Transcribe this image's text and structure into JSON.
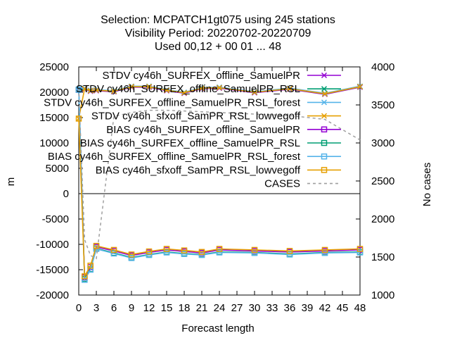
{
  "chart_data": {
    "type": "line",
    "title_lines": [
      "Selection: MCPATCH1gt075 using   245 stations",
      "Visibility   Period: 20220702-20220709",
      "Used  00,12  + 00 01 ... 48"
    ],
    "xlabel": "Forecast length",
    "ylabel": "m",
    "y2label": "No cases",
    "xlim": [
      0,
      48
    ],
    "ylim": [
      -20000,
      25000
    ],
    "y2lim": [
      1000,
      4000
    ],
    "x_ticks": [
      0,
      3,
      6,
      9,
      12,
      15,
      18,
      21,
      24,
      27,
      30,
      33,
      36,
      39,
      42,
      45,
      48
    ],
    "y_ticks": [
      -20000,
      -15000,
      -10000,
      -5000,
      0,
      5000,
      10000,
      15000,
      20000,
      25000
    ],
    "y2_ticks": [
      1000,
      1500,
      2000,
      2500,
      3000,
      3500,
      4000
    ],
    "legend_position": "top-right",
    "grid": false,
    "x": [
      0,
      1,
      2,
      3,
      6,
      9,
      12,
      15,
      18,
      21,
      24,
      30,
      36,
      42,
      48
    ],
    "series": [
      {
        "name": "STDV cy46h_SURFEX_offline_SamuelPR",
        "color": "#9400d3",
        "marker": "x",
        "axis": "y",
        "values": [
          20400,
          20600,
          20200,
          20300,
          20100,
          21000,
          21000,
          20300,
          19800,
          20700,
          20800,
          19900,
          20600,
          19600,
          21000
        ]
      },
      {
        "name": "STDV cy46h_SURFEX_offline_SamuelPR_RSL",
        "color": "#009e73",
        "marker": "x",
        "axis": "y",
        "values": [
          20500,
          20700,
          20300,
          20400,
          20200,
          21100,
          21100,
          20400,
          19900,
          20800,
          20900,
          20000,
          20700,
          19700,
          21100
        ]
      },
      {
        "name": "STDV cy46h_SURFEX_offline_SamuelPR_RSL_forest",
        "color": "#56b4e9",
        "marker": "x",
        "axis": "y",
        "values": [
          20600,
          20800,
          20400,
          20500,
          20300,
          21200,
          21200,
          20500,
          20000,
          20900,
          21000,
          20100,
          20800,
          19800,
          21200
        ]
      },
      {
        "name": "STDV cy46h_sfxoff_SamPR_RSL_lowvegoff",
        "color": "#e69f00",
        "marker": "x",
        "axis": "y",
        "values": [
          14800,
          20700,
          20300,
          20400,
          20200,
          21100,
          21100,
          20400,
          19900,
          20800,
          20900,
          20000,
          20700,
          19700,
          21100
        ]
      },
      {
        "name": "BIAS cy46h_SURFEX_offline_SamuelPR",
        "color": "#9400d3",
        "marker": "square",
        "axis": "y",
        "values": [
          20500,
          -16500,
          -14500,
          -10500,
          -11300,
          -12200,
          -11600,
          -11100,
          -11400,
          -11700,
          -11100,
          -11300,
          -11500,
          -11300,
          -11100
        ]
      },
      {
        "name": "BIAS cy46h_SURFEX_offline_SamuelPR_RSL",
        "color": "#009e73",
        "marker": "square",
        "axis": "y",
        "values": [
          20500,
          -16800,
          -14900,
          -10800,
          -11700,
          -12600,
          -12000,
          -11500,
          -11800,
          -12000,
          -11500,
          -11600,
          -11900,
          -11600,
          -11500
        ]
      },
      {
        "name": "BIAS cy46h_SURFEX_offline_SamuelPR_RSL_forest",
        "color": "#56b4e9",
        "marker": "square",
        "axis": "y",
        "values": [
          20500,
          -17000,
          -15000,
          -10900,
          -11800,
          -12700,
          -12100,
          -11600,
          -11900,
          -12100,
          -11600,
          -11700,
          -12000,
          -11700,
          -11600
        ]
      },
      {
        "name": "BIAS cy46h_sfxoff_SamPR_RSL_lowvegoff",
        "color": "#e69f00",
        "marker": "square",
        "axis": "y",
        "values": [
          14800,
          -16300,
          -14200,
          -10300,
          -11100,
          -12000,
          -11400,
          -10900,
          -11200,
          -11500,
          -10900,
          -11100,
          -11300,
          -11100,
          -10900
        ]
      },
      {
        "name": "CASES",
        "color": "#a0a0a0",
        "marker": "none",
        "dash": true,
        "axis": "y2",
        "values": [
          3720,
          1730,
          1520,
          1480,
          3350,
          3400,
          3430,
          3430,
          3420,
          3410,
          3400,
          3380,
          3360,
          3310,
          3040
        ]
      }
    ]
  }
}
